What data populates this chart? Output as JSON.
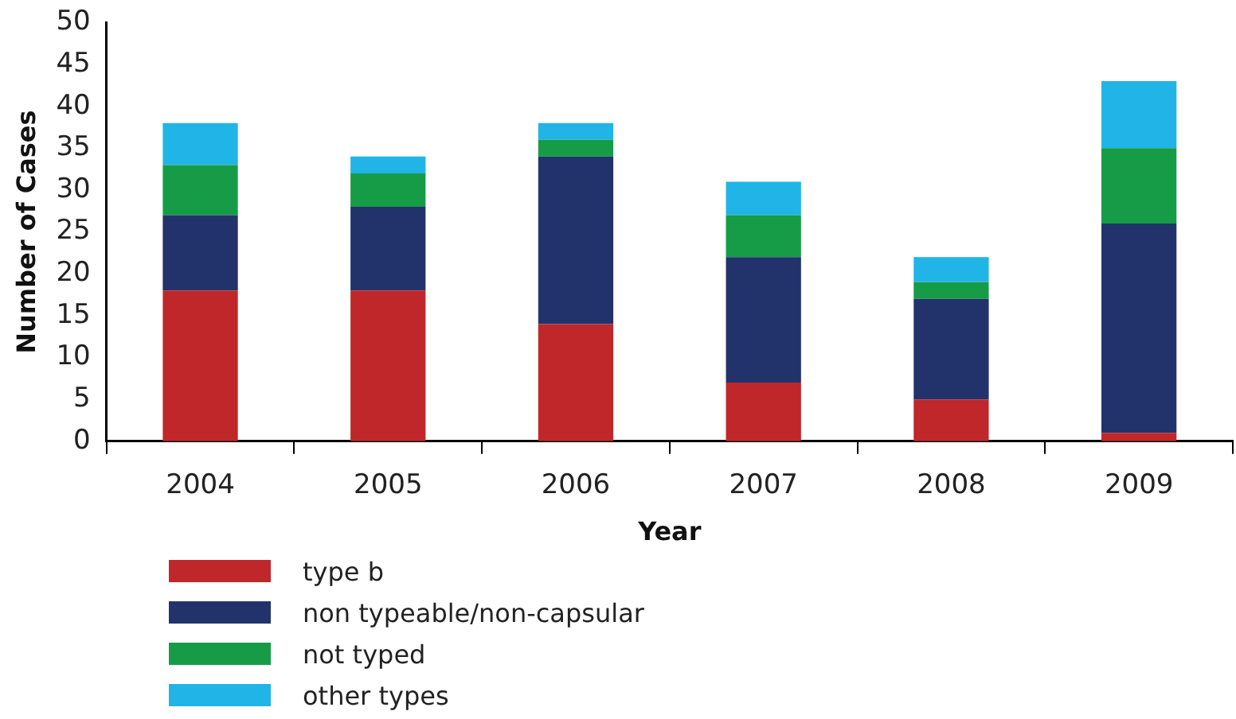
{
  "chart_data": {
    "type": "bar",
    "stacked": true,
    "xlabel": "Year",
    "ylabel": "Number of Cases",
    "categories": [
      "2004",
      "2005",
      "2006",
      "2007",
      "2008",
      "2009"
    ],
    "series": [
      {
        "name": "type b",
        "color": "#c0272a",
        "values": [
          18,
          18,
          14,
          7,
          5,
          1
        ]
      },
      {
        "name": "non typeable/non-capsular",
        "color": "#22336b",
        "values": [
          9,
          10,
          20,
          15,
          12,
          25
        ]
      },
      {
        "name": "not typed",
        "color": "#169c47",
        "values": [
          6,
          4,
          2,
          5,
          2,
          9
        ]
      },
      {
        "name": "other types",
        "color": "#20b5e6",
        "values": [
          5,
          2,
          2,
          4,
          3,
          8
        ]
      }
    ],
    "ylim": [
      0,
      50
    ],
    "yticks": [
      0,
      5,
      10,
      15,
      20,
      25,
      30,
      35,
      40,
      45,
      50
    ],
    "grid": false,
    "legend": "bottom"
  }
}
